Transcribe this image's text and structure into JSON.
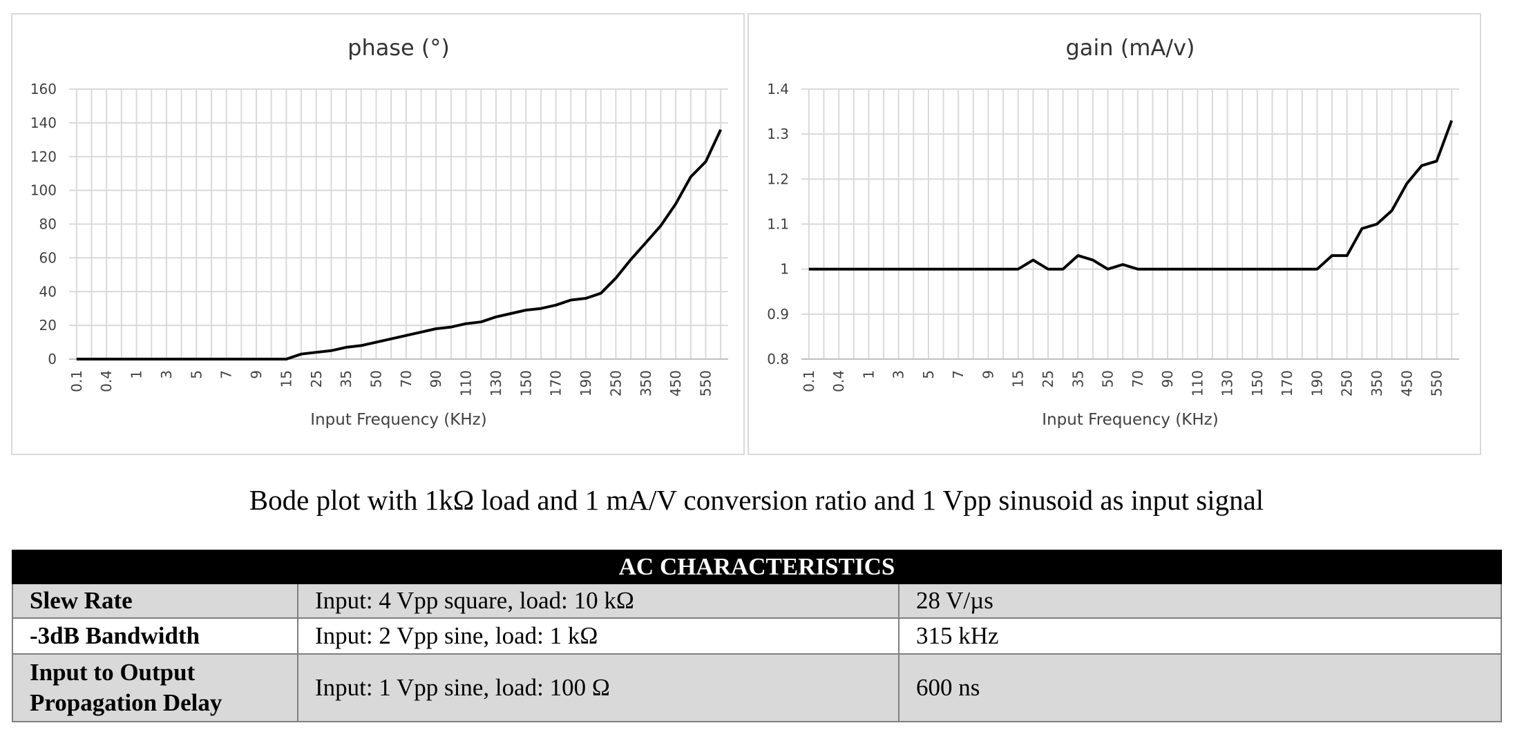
{
  "chart_data": [
    {
      "type": "line",
      "title": "phase (°)",
      "x_label": "Input Frequency (KHz)",
      "categories": [
        "0.1",
        null,
        "0.4",
        null,
        "1",
        null,
        "3",
        null,
        "5",
        null,
        "7",
        null,
        "9",
        null,
        "15",
        null,
        "25",
        null,
        "35",
        null,
        "50",
        null,
        "70",
        null,
        "90",
        null,
        "110",
        null,
        "130",
        null,
        "150",
        null,
        "170",
        null,
        "190",
        null,
        "250",
        null,
        "350",
        null,
        "450",
        null,
        "550",
        null
      ],
      "values": [
        0,
        0,
        0,
        0,
        0,
        0,
        0,
        0,
        0,
        0,
        0,
        0,
        0,
        0,
        0,
        3,
        4,
        5,
        7,
        8,
        10,
        12,
        14,
        16,
        18,
        19,
        21,
        22,
        25,
        27,
        29,
        30,
        32,
        35,
        36,
        39,
        48,
        59,
        69,
        79,
        92,
        108,
        117,
        136
      ],
      "color": "#000000",
      "ylim": [
        0,
        160
      ],
      "yticks": [
        0,
        20,
        40,
        60,
        80,
        100,
        120,
        140,
        160
      ],
      "grid": true
    },
    {
      "type": "line",
      "title": "gain (mA/v)",
      "x_label": "Input Frequency (KHz)",
      "categories": [
        "0.1",
        null,
        "0.4",
        null,
        "1",
        null,
        "3",
        null,
        "5",
        null,
        "7",
        null,
        "9",
        null,
        "15",
        null,
        "25",
        null,
        "35",
        null,
        "50",
        null,
        "70",
        null,
        "90",
        null,
        "110",
        null,
        "130",
        null,
        "150",
        null,
        "170",
        null,
        "190",
        null,
        "250",
        null,
        "350",
        null,
        "450",
        null,
        "550",
        null
      ],
      "values": [
        1,
        1,
        1,
        1,
        1,
        1,
        1,
        1,
        1,
        1,
        1,
        1,
        1,
        1,
        1,
        1.02,
        1,
        1,
        1.03,
        1.02,
        1,
        1.01,
        1,
        1,
        1,
        1,
        1,
        1,
        1,
        1,
        1,
        1,
        1,
        1,
        1,
        1.03,
        1.03,
        1.09,
        1.1,
        1.13,
        1.19,
        1.23,
        1.24,
        1.33
      ],
      "color": "#000000",
      "ylim": [
        0.8,
        1.4
      ],
      "yticks": [
        0.8,
        0.9,
        1,
        1.1,
        1.2,
        1.3,
        1.4
      ],
      "grid": true
    }
  ],
  "caption": "Bode plot with 1kΩ load and 1 mA/V conversion ratio and 1 Vpp sinusoid as input signal",
  "table": {
    "title": "AC CHARACTERISTICS",
    "rows": [
      [
        "Slew Rate",
        "Input: 4 Vpp square, load: 10 kΩ",
        "28 V/µs"
      ],
      [
        "-3dB Bandwidth",
        "Input: 2 Vpp sine, load: 1 kΩ",
        "315 kHz"
      ],
      [
        "Input to Output Propagation Delay",
        "Input: 1 Vpp sine, load: 100 Ω",
        "600 ns"
      ]
    ]
  }
}
